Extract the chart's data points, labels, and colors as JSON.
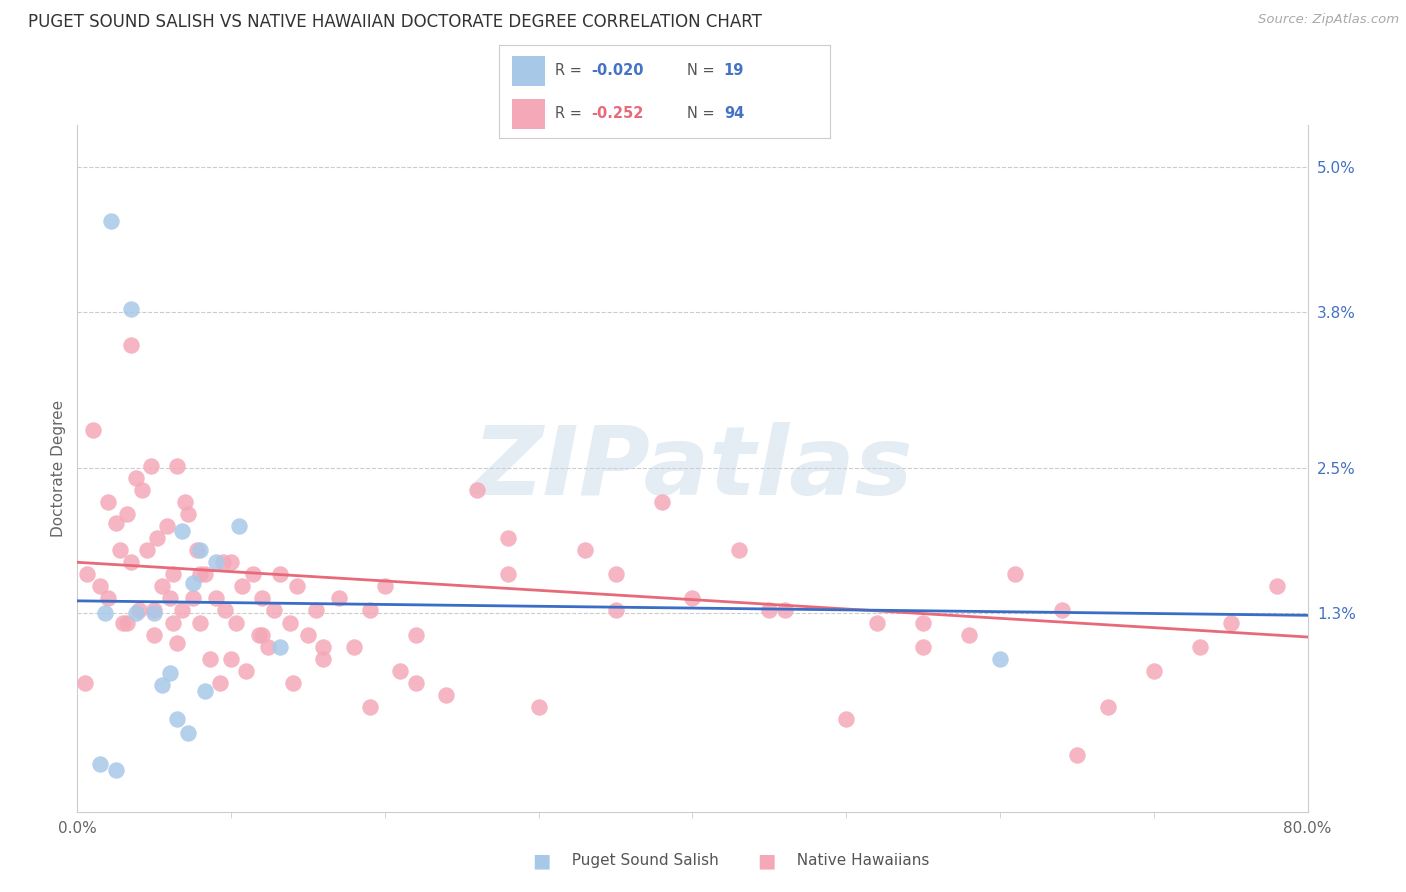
{
  "title": "PUGET SOUND SALISH VS NATIVE HAWAIIAN DOCTORATE DEGREE CORRELATION CHART",
  "source": "Source: ZipAtlas.com",
  "ylabel": "Doctorate Degree",
  "yticks": [
    0.0,
    1.3,
    2.5,
    3.8,
    5.0
  ],
  "ytick_labels": [
    "",
    "1.3%",
    "2.5%",
    "3.8%",
    "5.0%"
  ],
  "xmin": 0.0,
  "xmax": 80.0,
  "ymin": -0.35,
  "ymax": 5.35,
  "color_blue": "#A8C8E8",
  "color_pink": "#F4A8B8",
  "color_blue_line": "#3A6DC5",
  "color_pink_line": "#E8697A",
  "color_grid": "#CCCCCC",
  "color_ytick": "#4472C4",
  "watermark_text": "ZIPatlas",
  "blue_r": "-0.020",
  "blue_n": "19",
  "pink_r": "-0.252",
  "pink_n": "94",
  "blue_line_y0": 1.4,
  "blue_line_y1": 1.28,
  "pink_line_y0": 1.72,
  "pink_line_y1": 1.1,
  "blue_x": [
    2.2,
    3.5,
    3.8,
    5.0,
    5.5,
    6.0,
    6.5,
    7.2,
    7.5,
    8.0,
    8.3,
    9.0,
    10.5,
    13.2,
    1.5,
    1.8,
    2.5,
    6.8,
    60.0
  ],
  "blue_y": [
    4.55,
    3.82,
    1.3,
    1.3,
    0.7,
    0.8,
    0.42,
    0.3,
    1.55,
    1.82,
    0.65,
    1.72,
    2.02,
    1.02,
    0.05,
    1.3,
    0.0,
    1.98,
    0.92
  ],
  "pink_x": [
    1.0,
    1.5,
    2.0,
    2.5,
    2.8,
    3.0,
    3.2,
    3.5,
    3.8,
    4.0,
    4.2,
    4.5,
    4.8,
    5.0,
    5.2,
    5.5,
    5.8,
    6.0,
    6.2,
    6.5,
    6.8,
    7.0,
    7.2,
    7.5,
    7.8,
    8.0,
    8.3,
    8.6,
    9.0,
    9.3,
    9.6,
    10.0,
    10.3,
    10.7,
    11.0,
    11.4,
    11.8,
    12.0,
    12.4,
    12.8,
    13.2,
    13.8,
    14.3,
    15.0,
    15.5,
    16.0,
    17.0,
    18.0,
    19.0,
    20.0,
    21.0,
    22.0,
    24.0,
    26.0,
    28.0,
    30.0,
    33.0,
    35.0,
    38.0,
    40.0,
    43.0,
    46.0,
    50.0,
    52.0,
    55.0,
    58.0,
    61.0,
    64.0,
    67.0,
    70.0,
    73.0,
    75.0,
    78.0,
    0.5,
    0.6,
    2.0,
    3.2,
    5.0,
    6.2,
    8.0,
    10.0,
    12.0,
    14.0,
    16.0,
    19.0,
    22.0,
    28.0,
    35.0,
    3.5,
    6.5,
    9.5,
    45.0,
    55.0,
    65.0
  ],
  "pink_y": [
    2.82,
    1.52,
    2.22,
    2.05,
    1.82,
    1.22,
    2.12,
    1.72,
    2.42,
    1.32,
    2.32,
    1.82,
    2.52,
    1.12,
    1.92,
    1.52,
    2.02,
    1.42,
    1.62,
    1.05,
    1.32,
    2.22,
    2.12,
    1.42,
    1.82,
    1.22,
    1.62,
    0.92,
    1.42,
    0.72,
    1.32,
    1.72,
    1.22,
    1.52,
    0.82,
    1.62,
    1.12,
    1.42,
    1.02,
    1.32,
    1.62,
    1.22,
    1.52,
    1.12,
    1.32,
    0.92,
    1.42,
    1.02,
    1.32,
    1.52,
    0.82,
    1.12,
    0.62,
    2.32,
    1.92,
    0.52,
    1.82,
    1.62,
    2.22,
    1.42,
    1.82,
    1.32,
    0.42,
    1.22,
    1.02,
    1.12,
    1.62,
    1.32,
    0.52,
    0.82,
    1.02,
    1.22,
    1.52,
    0.72,
    1.62,
    1.42,
    1.22,
    1.32,
    1.22,
    1.62,
    0.92,
    1.12,
    0.72,
    1.02,
    0.52,
    0.72,
    1.62,
    1.32,
    3.52,
    2.52,
    1.72,
    1.32,
    1.22,
    0.12
  ]
}
